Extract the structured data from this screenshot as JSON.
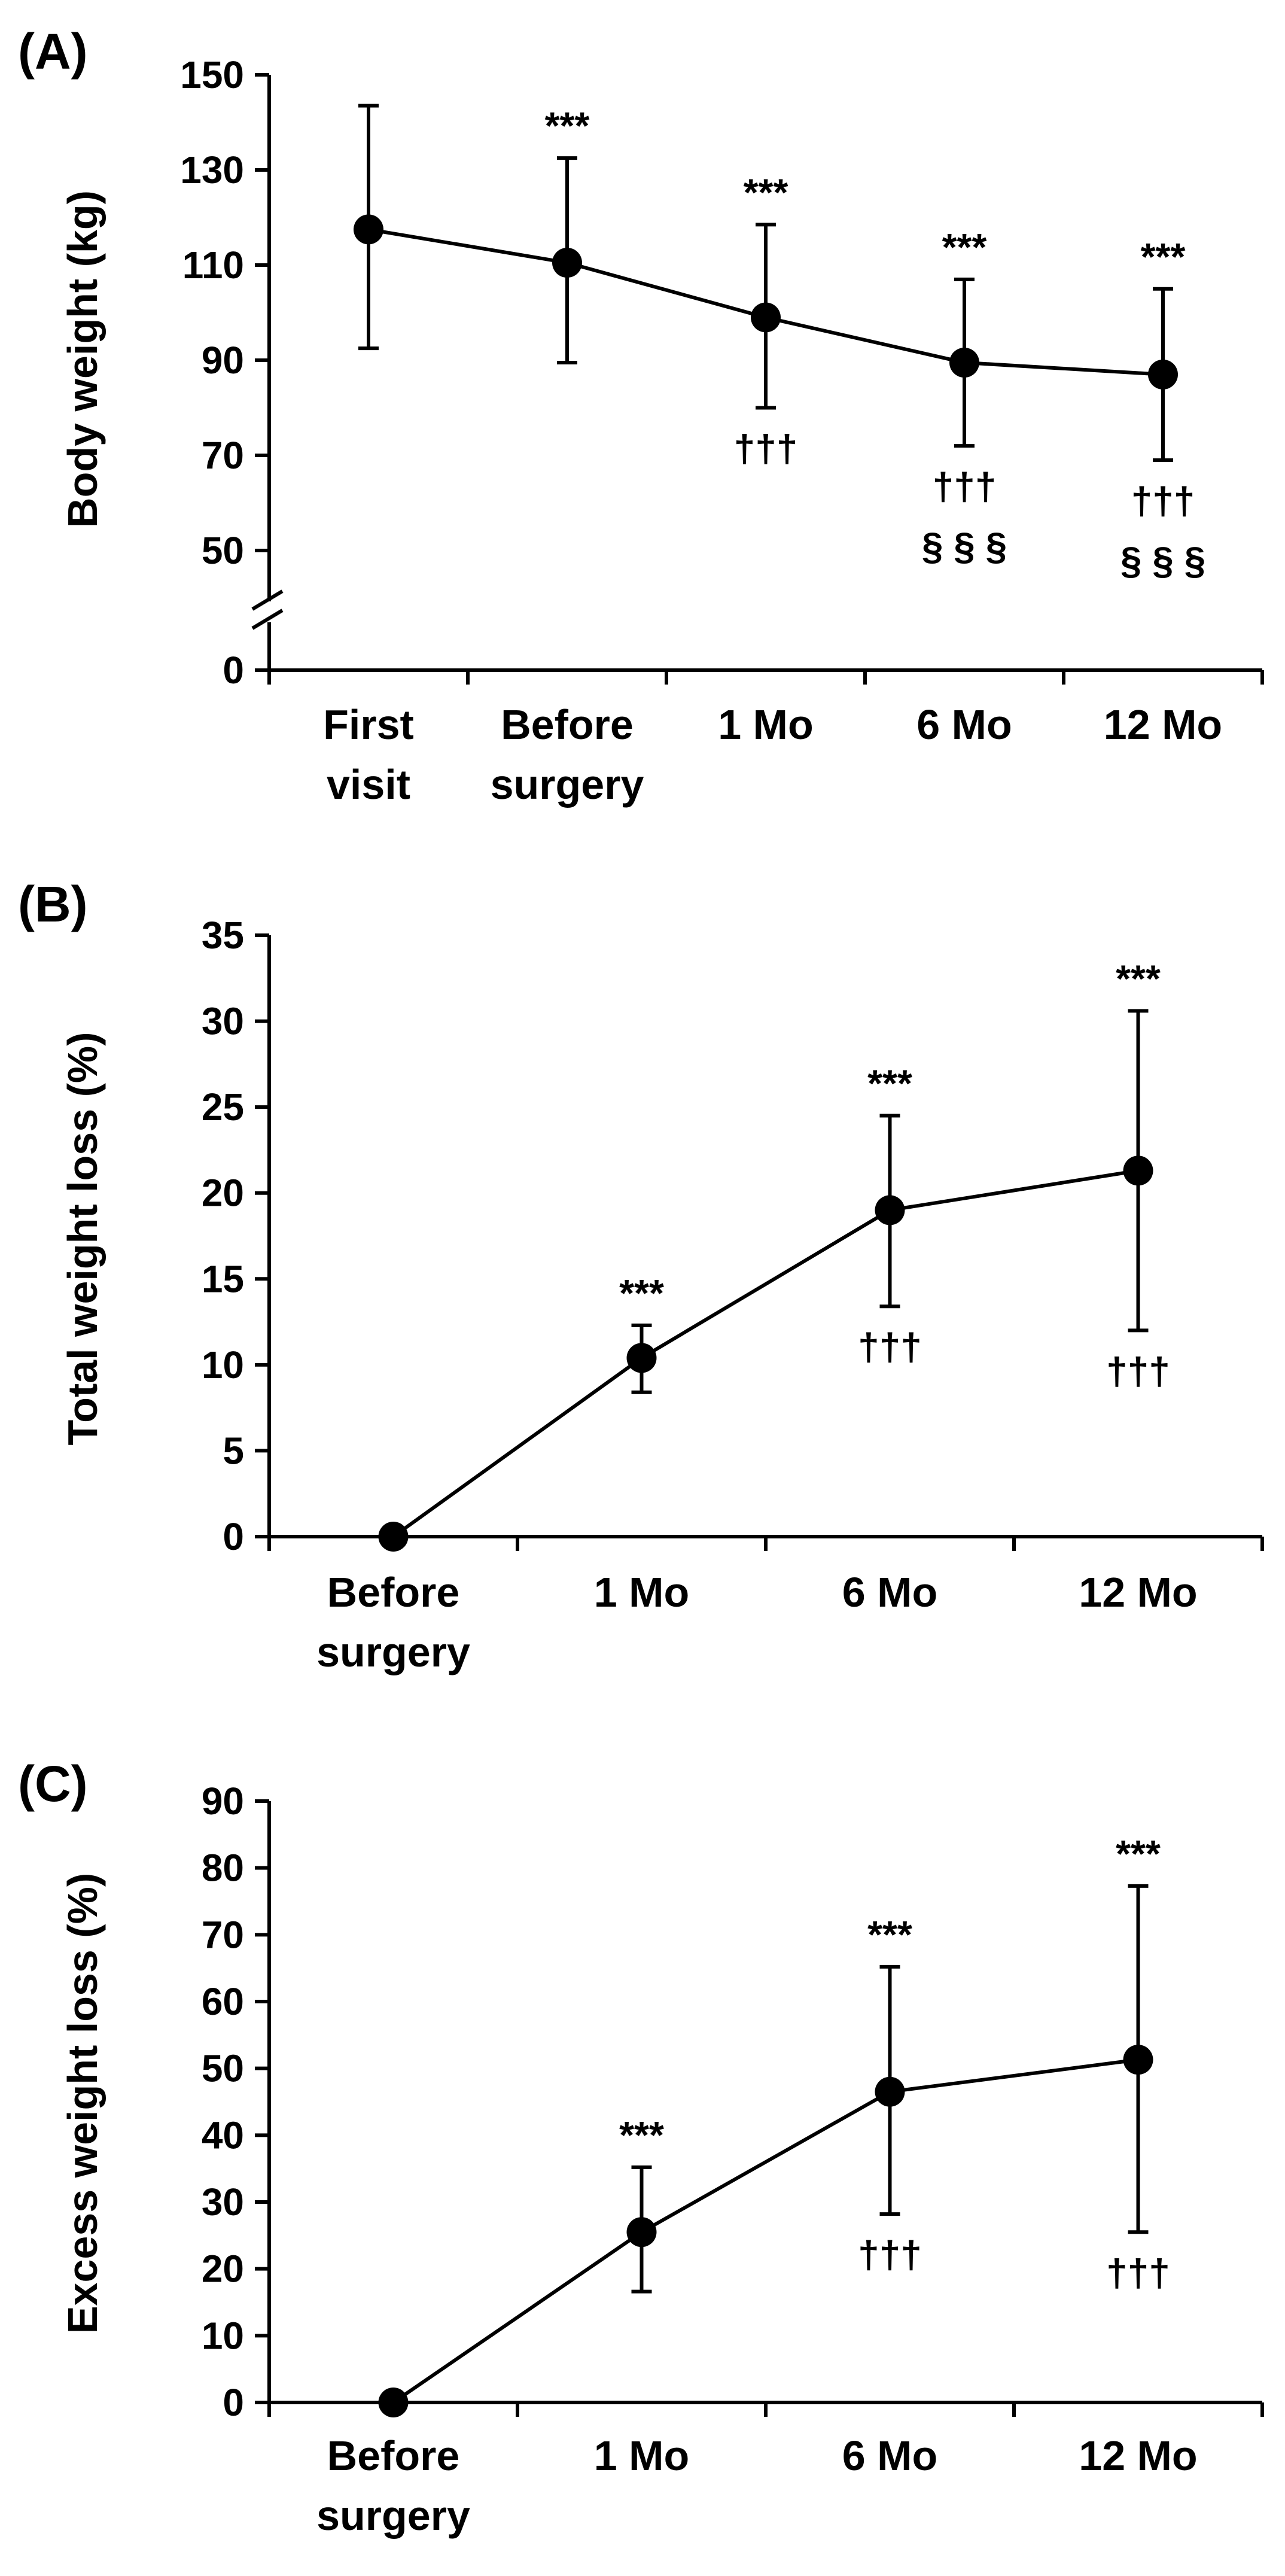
{
  "chart_data": [
    {
      "panel": "(A)",
      "type": "line",
      "title": "",
      "xlabel": "",
      "ylabel": "Body weight (kg)",
      "categories": [
        [
          "First",
          "visit"
        ],
        [
          "Before",
          "surgery"
        ],
        [
          "1 Mo"
        ],
        [
          "6 Mo"
        ],
        [
          "12 Mo"
        ]
      ],
      "values": [
        117.5,
        110.5,
        99,
        89.5,
        87
      ],
      "error_upper": [
        143.5,
        132.5,
        118.5,
        107,
        105
      ],
      "error_lower": [
        92.5,
        89.5,
        80,
        72,
        69
      ],
      "ylim": [
        0,
        150
      ],
      "axis_break": [
        0,
        45
      ],
      "yticks": [
        "0",
        "50",
        "70",
        "90",
        "110",
        "130",
        "150"
      ],
      "annotations_above": [
        "",
        "***",
        "***",
        "***",
        "***"
      ],
      "annotations_below": [
        [],
        [],
        [
          "†††"
        ],
        [
          "†††",
          "§ § §"
        ],
        [
          "†††",
          "§ § §"
        ]
      ]
    },
    {
      "panel": "(B)",
      "type": "line",
      "title": "",
      "xlabel": "",
      "ylabel": "Total weight loss (%)",
      "categories": [
        [
          "Before",
          "surgery"
        ],
        [
          "1 Mo"
        ],
        [
          "6 Mo"
        ],
        [
          "12 Mo"
        ]
      ],
      "values": [
        0,
        10.4,
        19,
        21.3
      ],
      "error_upper": [
        0,
        12.3,
        24.5,
        30.6
      ],
      "error_lower": [
        0,
        8.4,
        13.4,
        12
      ],
      "ylim": [
        0,
        35
      ],
      "yticks": [
        "0",
        "5",
        "10",
        "15",
        "20",
        "25",
        "30",
        "35"
      ],
      "annotations_above": [
        "",
        "***",
        "***",
        "***"
      ],
      "annotations_below": [
        [],
        [],
        [
          "†††"
        ],
        [
          "†††"
        ]
      ]
    },
    {
      "panel": "(C)",
      "type": "line",
      "title": "",
      "xlabel": "",
      "ylabel": "Excess weight loss (%)",
      "categories": [
        [
          "Before",
          "surgery"
        ],
        [
          "1 Mo"
        ],
        [
          "6 Mo"
        ],
        [
          "12 Mo"
        ]
      ],
      "values": [
        0,
        25.5,
        46.5,
        51.3
      ],
      "error_upper": [
        0,
        35.2,
        65.2,
        77.3
      ],
      "error_lower": [
        0,
        16.6,
        28.2,
        25.5
      ],
      "ylim": [
        0,
        90
      ],
      "yticks": [
        "0",
        "10",
        "20",
        "30",
        "40",
        "50",
        "60",
        "70",
        "80",
        "90"
      ],
      "annotations_above": [
        "",
        "***",
        "***",
        "***"
      ],
      "annotations_below": [
        [],
        [],
        [
          "†††"
        ],
        [
          "†††"
        ]
      ]
    }
  ]
}
